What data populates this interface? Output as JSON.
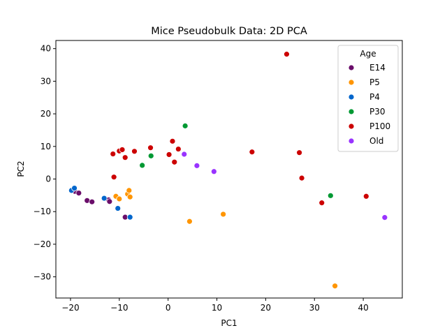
{
  "chart_data": {
    "type": "scatter",
    "title": "Mice Pseudobulk Data: 2D PCA",
    "xlabel": "PC1",
    "ylabel": "PC2",
    "xlim": [
      -23,
      48
    ],
    "ylim": [
      -36.5,
      42.5
    ],
    "xticks": [
      -20,
      -10,
      0,
      10,
      20,
      30,
      40
    ],
    "yticks": [
      -30,
      -20,
      -10,
      0,
      10,
      20,
      30,
      40
    ],
    "xtick_labels": [
      "−20",
      "−10",
      "0",
      "10",
      "20",
      "30",
      "40"
    ],
    "ytick_labels": [
      "−30",
      "−20",
      "−10",
      "0",
      "10",
      "20",
      "30",
      "40"
    ],
    "grid": false,
    "legend": {
      "title": "Age",
      "placement": "top-right"
    },
    "series": [
      {
        "name": "E14",
        "color": "#6a0e6a",
        "points": [
          [
            -19.5,
            -3.3
          ],
          [
            -19.1,
            -3.8
          ],
          [
            -18.3,
            -4.3
          ],
          [
            -16.6,
            -6.6
          ],
          [
            -15.6,
            -7.0
          ],
          [
            -12.2,
            -6.4
          ],
          [
            -12.0,
            -6.9
          ],
          [
            -8.8,
            -11.7
          ]
        ]
      },
      {
        "name": "P5",
        "color": "#ff9500",
        "points": [
          [
            -10.7,
            -5.3
          ],
          [
            -10.0,
            -6.1
          ],
          [
            -8.3,
            -4.6
          ],
          [
            -8.0,
            -3.5
          ],
          [
            -7.8,
            -5.5
          ],
          [
            4.4,
            -13.0
          ],
          [
            11.3,
            -10.8
          ],
          [
            34.2,
            -32.8
          ]
        ]
      },
      {
        "name": "P4",
        "color": "#0066cc",
        "points": [
          [
            -19.8,
            -3.5
          ],
          [
            -19.2,
            -2.8
          ],
          [
            -13.1,
            -5.9
          ],
          [
            -10.3,
            -9.0
          ],
          [
            -7.8,
            -11.7
          ]
        ]
      },
      {
        "name": "P30",
        "color": "#009933",
        "points": [
          [
            -5.3,
            4.2
          ],
          [
            -3.5,
            7.1
          ],
          [
            3.5,
            16.3
          ],
          [
            33.3,
            -5.1
          ]
        ]
      },
      {
        "name": "P100",
        "color": "#cc0000",
        "points": [
          [
            -11.3,
            7.7
          ],
          [
            -11.1,
            0.6
          ],
          [
            -10.0,
            8.6
          ],
          [
            -9.4,
            9.0
          ],
          [
            -8.8,
            6.6
          ],
          [
            -6.9,
            8.5
          ],
          [
            -3.6,
            9.6
          ],
          [
            0.2,
            7.5
          ],
          [
            0.9,
            11.6
          ],
          [
            1.3,
            5.2
          ],
          [
            2.1,
            9.2
          ],
          [
            17.2,
            8.3
          ],
          [
            24.3,
            38.3
          ],
          [
            26.9,
            8.1
          ],
          [
            27.4,
            0.3
          ],
          [
            31.5,
            -7.3
          ],
          [
            40.6,
            -5.3
          ]
        ]
      },
      {
        "name": "Old",
        "color": "#9933ff",
        "points": [
          [
            3.3,
            7.6
          ],
          [
            5.9,
            4.1
          ],
          [
            9.4,
            2.3
          ],
          [
            44.4,
            -11.8
          ]
        ]
      }
    ]
  }
}
